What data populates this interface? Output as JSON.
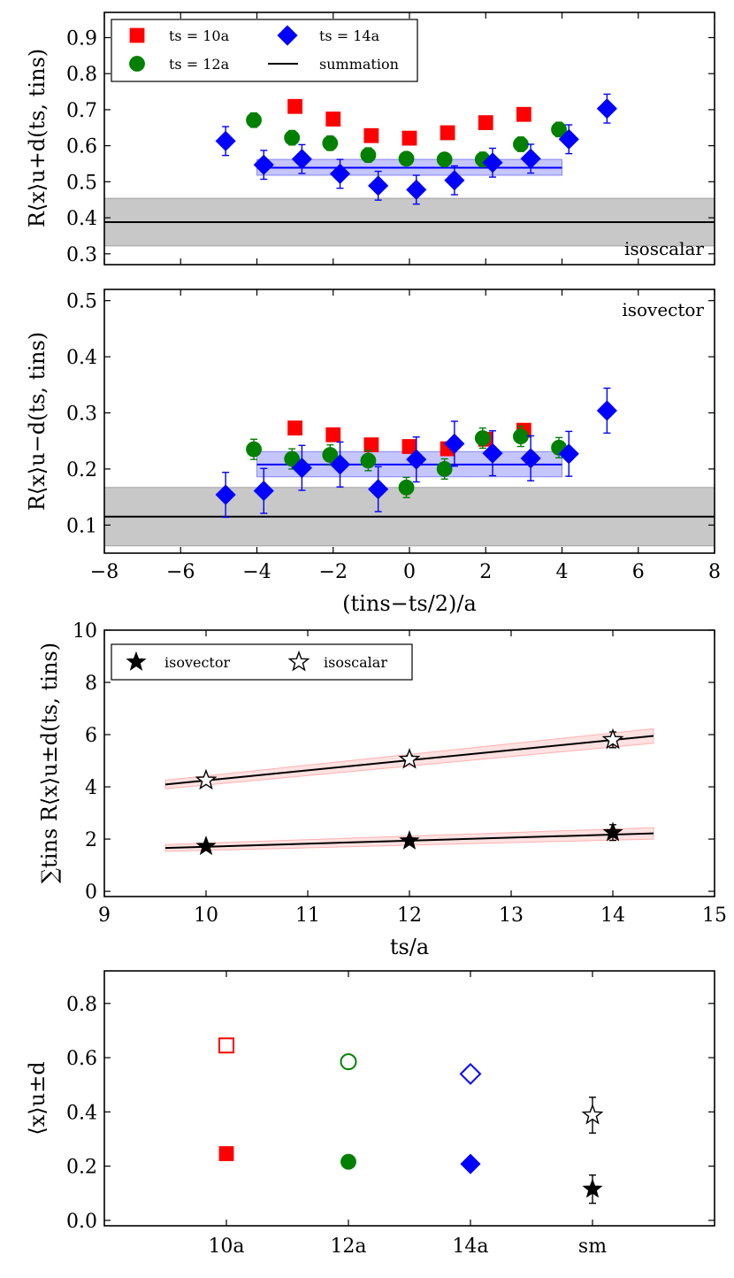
{
  "chart_data": [
    {
      "type": "scatter",
      "panel": "isoscalar",
      "annotation": "isoscalar",
      "ylabel": "R⟨x⟩u+d(ts, tins)",
      "xlabel": "",
      "xlim": [
        -8,
        8
      ],
      "ylim": [
        0.27,
        0.97
      ],
      "yticks": [
        0.3,
        0.4,
        0.5,
        0.6,
        0.7,
        0.8,
        0.9
      ],
      "xticks": [
        -8,
        -6,
        -4,
        -2,
        0,
        2,
        4,
        6,
        8
      ],
      "legend": {
        "placement": "top-left",
        "entries": [
          "ts = 10a",
          "ts = 14a",
          "ts = 12a",
          "summation"
        ]
      },
      "series": [
        {
          "name": "ts = 10a",
          "color": "#ff0000",
          "marker": "square",
          "x": [
            -3,
            -2,
            -1,
            0,
            1,
            2,
            3
          ],
          "y": [
            0.709,
            0.674,
            0.628,
            0.621,
            0.636,
            0.664,
            0.687
          ],
          "err": [
            0.008,
            0.008,
            0.008,
            0.008,
            0.008,
            0.008,
            0.008
          ]
        },
        {
          "name": "ts = 12a",
          "color": "#008000",
          "marker": "circle",
          "x": [
            -4,
            -3,
            -2,
            -1,
            0,
            1,
            2,
            3,
            4
          ],
          "y": [
            0.671,
            0.622,
            0.607,
            0.574,
            0.564,
            0.562,
            0.562,
            0.604,
            0.645
          ],
          "err": [
            0.02,
            0.02,
            0.02,
            0.02,
            0.016,
            0.016,
            0.02,
            0.02,
            0.02
          ]
        },
        {
          "name": "ts = 14a",
          "color": "#0000ff",
          "marker": "diamond",
          "x": [
            -5,
            -4,
            -3,
            -2,
            -1,
            0,
            1,
            2,
            3,
            4,
            5
          ],
          "y": [
            0.613,
            0.547,
            0.563,
            0.522,
            0.489,
            0.478,
            0.504,
            0.553,
            0.564,
            0.618,
            0.703
          ],
          "err": [
            0.04,
            0.04,
            0.04,
            0.04,
            0.04,
            0.04,
            0.04,
            0.04,
            0.04,
            0.04,
            0.04
          ]
        }
      ],
      "fit_band": {
        "x": [
          -4,
          4
        ],
        "value": 0.539,
        "low": 0.518,
        "high": 0.562,
        "color": "#0000ff"
      },
      "summation_band": {
        "value": 0.388,
        "low": 0.322,
        "high": 0.454
      }
    },
    {
      "type": "scatter",
      "panel": "isovector",
      "annotation": "isovector",
      "ylabel": "R⟨x⟩u−d(ts, tins)",
      "xlabel": "(tins−ts/2)/a",
      "xlim": [
        -8,
        8
      ],
      "ylim": [
        0.05,
        0.52
      ],
      "yticks": [
        0.1,
        0.2,
        0.3,
        0.4,
        0.5
      ],
      "xticks": [
        -8,
        -6,
        -4,
        -2,
        0,
        2,
        4,
        6,
        8
      ],
      "series": [
        {
          "name": "ts = 10a",
          "color": "#ff0000",
          "marker": "square",
          "x": [
            -3,
            -2,
            -1,
            0,
            1,
            2,
            3
          ],
          "y": [
            0.273,
            0.261,
            0.243,
            0.24,
            0.236,
            0.253,
            0.269
          ],
          "err": [
            0.005,
            0.005,
            0.005,
            0.005,
            0.005,
            0.005,
            0.005
          ]
        },
        {
          "name": "ts = 12a",
          "color": "#008000",
          "marker": "circle",
          "x": [
            -4,
            -3,
            -2,
            -1,
            0,
            1,
            2,
            3,
            4
          ],
          "y": [
            0.235,
            0.218,
            0.225,
            0.215,
            0.167,
            0.2,
            0.255,
            0.258,
            0.238
          ],
          "err": [
            0.018,
            0.018,
            0.018,
            0.018,
            0.018,
            0.018,
            0.018,
            0.018,
            0.018
          ]
        },
        {
          "name": "ts = 14a",
          "color": "#0000ff",
          "marker": "diamond",
          "x": [
            -5,
            -4,
            -3,
            -2,
            -1,
            0,
            1,
            2,
            3,
            4,
            5
          ],
          "y": [
            0.154,
            0.161,
            0.202,
            0.208,
            0.164,
            0.217,
            0.245,
            0.228,
            0.219,
            0.227,
            0.304
          ],
          "err": [
            0.04,
            0.04,
            0.04,
            0.04,
            0.04,
            0.04,
            0.04,
            0.04,
            0.04,
            0.04,
            0.04
          ]
        }
      ],
      "fit_band": {
        "x": [
          -4,
          4
        ],
        "value": 0.208,
        "low": 0.186,
        "high": 0.231,
        "color": "#0000ff"
      },
      "summation_band": {
        "value": 0.115,
        "low": 0.063,
        "high": 0.167
      }
    },
    {
      "type": "scatter",
      "panel": "summation",
      "ylabel": "∑tins R⟨x⟩u±d(ts, tins)",
      "xlabel": "ts/a",
      "xlim": [
        9,
        15
      ],
      "ylim": [
        -0.2,
        10
      ],
      "xticks": [
        9,
        10,
        11,
        12,
        13,
        14,
        15
      ],
      "yticks": [
        0,
        2,
        4,
        6,
        8,
        10
      ],
      "legend": {
        "placement": "top-left",
        "entries": [
          "isovector",
          "isoscalar"
        ]
      },
      "series": [
        {
          "name": "isovector",
          "marker": "star-filled",
          "x": [
            10,
            12,
            14
          ],
          "y": [
            1.72,
            1.93,
            2.25
          ],
          "err": [
            0.1,
            0.12,
            0.3
          ],
          "fit": {
            "x": [
              9.6,
              14.4
            ],
            "y": [
              1.66,
              2.22
            ],
            "band": 0.22
          }
        },
        {
          "name": "isoscalar",
          "marker": "star-open",
          "x": [
            10,
            12,
            14
          ],
          "y": [
            4.25,
            5.05,
            5.8
          ],
          "err": [
            0.12,
            0.15,
            0.3
          ],
          "fit": {
            "x": [
              9.6,
              14.4
            ],
            "y": [
              4.09,
              5.95
            ],
            "band": 0.28
          }
        }
      ]
    },
    {
      "type": "scatter",
      "panel": "comparison",
      "ylabel": "⟨x⟩u±d",
      "xlabel": "",
      "categories": [
        "10a",
        "12a",
        "14a",
        "sm"
      ],
      "xlim": [
        0,
        5
      ],
      "ylim": [
        -0.02,
        0.92
      ],
      "yticks": [
        0.0,
        0.2,
        0.4,
        0.6,
        0.8
      ],
      "series": [
        {
          "name": "isoscalar",
          "points": [
            {
              "cat": 0,
              "y": 0.645,
              "err": 0,
              "marker": "square-open",
              "color": "#ff0000"
            },
            {
              "cat": 1,
              "y": 0.585,
              "err": 0,
              "marker": "circle-open",
              "color": "#008000"
            },
            {
              "cat": 2,
              "y": 0.54,
              "err": 0,
              "marker": "diamond-open",
              "color": "#0000ff"
            },
            {
              "cat": 3,
              "y": 0.388,
              "err": 0.066,
              "marker": "star-open",
              "color": "#000000"
            }
          ]
        },
        {
          "name": "isovector",
          "points": [
            {
              "cat": 0,
              "y": 0.246,
              "err": 0,
              "marker": "square",
              "color": "#ff0000"
            },
            {
              "cat": 1,
              "y": 0.216,
              "err": 0,
              "marker": "circle",
              "color": "#008000"
            },
            {
              "cat": 2,
              "y": 0.208,
              "err": 0,
              "marker": "diamond",
              "color": "#0000ff"
            },
            {
              "cat": 3,
              "y": 0.115,
              "err": 0.052,
              "marker": "star",
              "color": "#000000"
            }
          ]
        }
      ]
    }
  ]
}
